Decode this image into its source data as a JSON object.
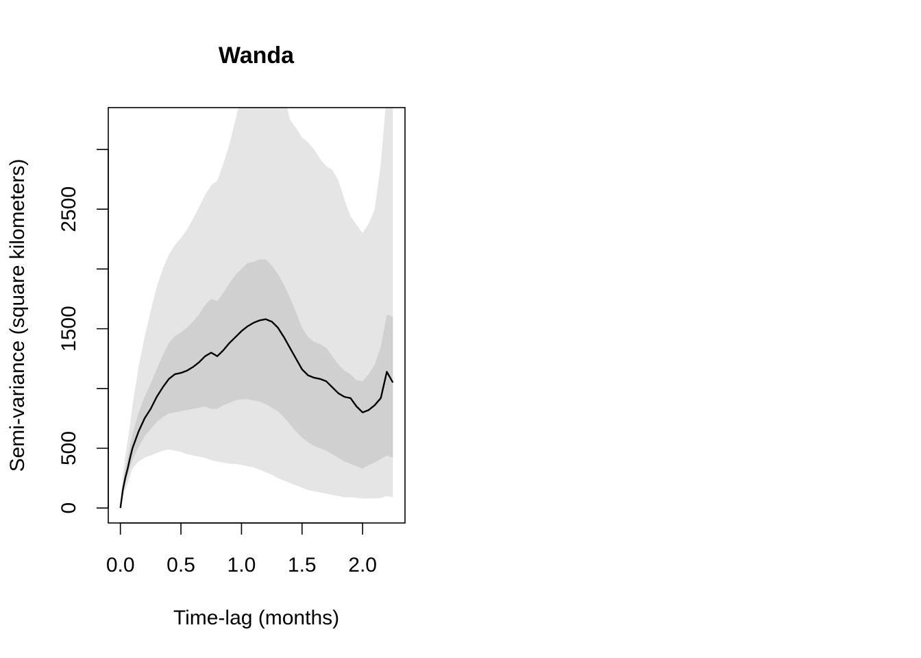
{
  "chart_data": {
    "type": "area",
    "title": "Wanda",
    "xlabel": "Time-lag (months)",
    "ylabel": "Semi-variance (square kilometers)",
    "xlim": [
      -0.1,
      2.35
    ],
    "ylim": [
      -125,
      3350
    ],
    "xticks": [
      0.0,
      0.5,
      1.0,
      1.5,
      2.0
    ],
    "xtick_labels": [
      "0.0",
      "0.5",
      "1.0",
      "1.5",
      "2.0"
    ],
    "yticks": [
      0,
      500,
      1000,
      1500,
      2000,
      2500,
      3000
    ],
    "ytick_labels": [
      "0",
      "500",
      "",
      "1500",
      "",
      "2500",
      ""
    ],
    "grid": false,
    "x": [
      0.0,
      0.02,
      0.04,
      0.06,
      0.08,
      0.1,
      0.15,
      0.2,
      0.25,
      0.3,
      0.35,
      0.4,
      0.45,
      0.5,
      0.55,
      0.6,
      0.65,
      0.7,
      0.75,
      0.8,
      0.85,
      0.9,
      0.95,
      1.0,
      1.05,
      1.1,
      1.15,
      1.2,
      1.25,
      1.3,
      1.35,
      1.4,
      1.45,
      1.5,
      1.55,
      1.6,
      1.65,
      1.7,
      1.75,
      1.8,
      1.85,
      1.9,
      1.95,
      2.0,
      2.05,
      2.1,
      2.15,
      2.2,
      2.25
    ],
    "series": [
      {
        "role": "estimate",
        "color": "#000000",
        "values": [
          0,
          150,
          250,
          330,
          420,
          500,
          640,
          750,
          830,
          930,
          1010,
          1080,
          1120,
          1130,
          1150,
          1180,
          1220,
          1270,
          1300,
          1270,
          1320,
          1380,
          1430,
          1480,
          1520,
          1550,
          1570,
          1580,
          1560,
          1510,
          1430,
          1340,
          1250,
          1160,
          1110,
          1090,
          1080,
          1060,
          1010,
          960,
          930,
          920,
          850,
          800,
          820,
          860,
          920,
          1140,
          1050
        ]
      },
      {
        "role": "inner-band",
        "color": "#d0d0d0",
        "lower": [
          0,
          120,
          200,
          270,
          340,
          400,
          510,
          600,
          660,
          720,
          760,
          790,
          800,
          810,
          820,
          830,
          840,
          850,
          830,
          830,
          860,
          880,
          900,
          910,
          910,
          900,
          890,
          870,
          840,
          810,
          760,
          700,
          640,
          590,
          550,
          520,
          500,
          480,
          450,
          420,
          390,
          370,
          350,
          330,
          360,
          380,
          410,
          440,
          420
        ],
        "upper": [
          0,
          190,
          320,
          420,
          520,
          620,
          800,
          930,
          1040,
          1160,
          1280,
          1380,
          1440,
          1470,
          1510,
          1560,
          1620,
          1700,
          1750,
          1730,
          1800,
          1880,
          1950,
          2000,
          2050,
          2060,
          2080,
          2080,
          2030,
          1960,
          1870,
          1760,
          1640,
          1510,
          1430,
          1390,
          1370,
          1340,
          1270,
          1200,
          1150,
          1120,
          1070,
          1060,
          1120,
          1200,
          1350,
          1620,
          1600
        ]
      },
      {
        "role": "outer-band",
        "color": "#e5e5e5",
        "lower": [
          0,
          80,
          150,
          210,
          270,
          330,
          390,
          420,
          440,
          460,
          480,
          490,
          480,
          470,
          450,
          440,
          430,
          420,
          400,
          390,
          380,
          370,
          370,
          360,
          350,
          340,
          320,
          300,
          280,
          250,
          230,
          210,
          190,
          170,
          150,
          140,
          130,
          120,
          110,
          100,
          90,
          90,
          85,
          80,
          80,
          80,
          85,
          100,
          90
        ],
        "upper": [
          0,
          260,
          430,
          560,
          700,
          860,
          1180,
          1430,
          1650,
          1850,
          2000,
          2120,
          2200,
          2260,
          2330,
          2420,
          2520,
          2620,
          2700,
          2740,
          2880,
          3040,
          3250,
          3450,
          3480,
          3480,
          3480,
          3480,
          3480,
          3480,
          3480,
          3250,
          3180,
          3100,
          3060,
          3000,
          2920,
          2860,
          2830,
          2740,
          2580,
          2440,
          2370,
          2300,
          2380,
          2500,
          2880,
          3480,
          3480
        ]
      }
    ]
  }
}
